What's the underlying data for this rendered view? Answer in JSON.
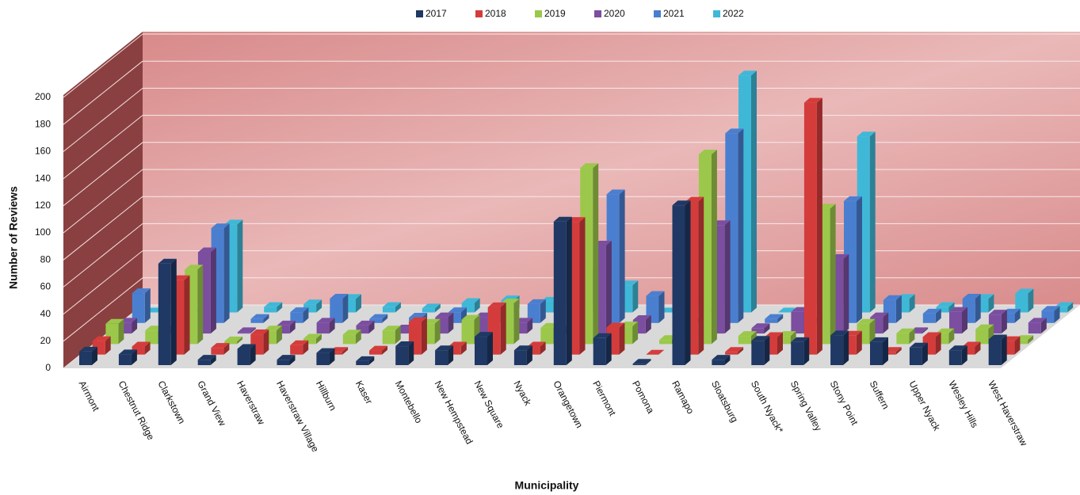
{
  "chart_data": {
    "type": "bar3d",
    "x_label": "Municipality",
    "y_label": "Number of Reviews",
    "categories": [
      "Airmont",
      "Chestnut Ridge",
      "Clarkstown",
      "Grand View",
      "Haverstraw",
      "Haverstraw Village",
      "Hillburn",
      "Kaser",
      "Montebello",
      "New Hempstead",
      "New Square",
      "Nyack",
      "Orangetown",
      "Piermont",
      "Pomona",
      "Ramapo",
      "Sloatsburg",
      "South Nyack*",
      "Spring Valley",
      "Stony Point",
      "Suffern",
      "Upper Nyack",
      "Wesley Hills",
      "West Haverstraw"
    ],
    "series": [
      {
        "name": "2017",
        "color": "#1f3864",
        "values": [
          10,
          8,
          75,
          4,
          12,
          4,
          9,
          3,
          14,
          11,
          21,
          11,
          106,
          20,
          1,
          118,
          4,
          18,
          17,
          22,
          17,
          13,
          11,
          19
        ]
      },
      {
        "name": "2018",
        "color": "#d43c3c",
        "values": [
          10,
          6,
          55,
          5,
          15,
          7,
          2,
          3,
          24,
          6,
          35,
          6,
          98,
          20,
          0,
          113,
          2,
          13,
          186,
          14,
          2,
          13,
          6,
          10
        ]
      },
      {
        "name": "2019",
        "color": "#9bc84a",
        "values": [
          15,
          10,
          55,
          2,
          10,
          4,
          7,
          10,
          15,
          18,
          30,
          12,
          130,
          13,
          3,
          140,
          6,
          6,
          100,
          15,
          8,
          8,
          11,
          3
        ]
      },
      {
        "name": "2020",
        "color": "#7b4ea0",
        "values": [
          8,
          2,
          60,
          1,
          6,
          8,
          6,
          3,
          12,
          12,
          8,
          2,
          65,
          10,
          0,
          80,
          4,
          16,
          55,
          12,
          1,
          16,
          14,
          8
        ]
      },
      {
        "name": "2021",
        "color": "#4a7fd0",
        "values": [
          22,
          0,
          70,
          3,
          8,
          18,
          3,
          4,
          8,
          11,
          14,
          20,
          95,
          20,
          0,
          140,
          3,
          0,
          90,
          17,
          7,
          18,
          7,
          9
        ]
      },
      {
        "name": "2022",
        "color": "#3fb8d8",
        "values": [
          0,
          0,
          65,
          4,
          6,
          10,
          4,
          3,
          7,
          9,
          8,
          28,
          20,
          0,
          0,
          175,
          0,
          6,
          130,
          10,
          4,
          10,
          14,
          4
        ]
      }
    ],
    "ylim": [
      0,
      200
    ],
    "yticks": [
      0,
      20,
      40,
      60,
      80,
      100,
      120,
      140,
      160,
      180,
      200
    ],
    "grid": true,
    "legend": "top"
  }
}
